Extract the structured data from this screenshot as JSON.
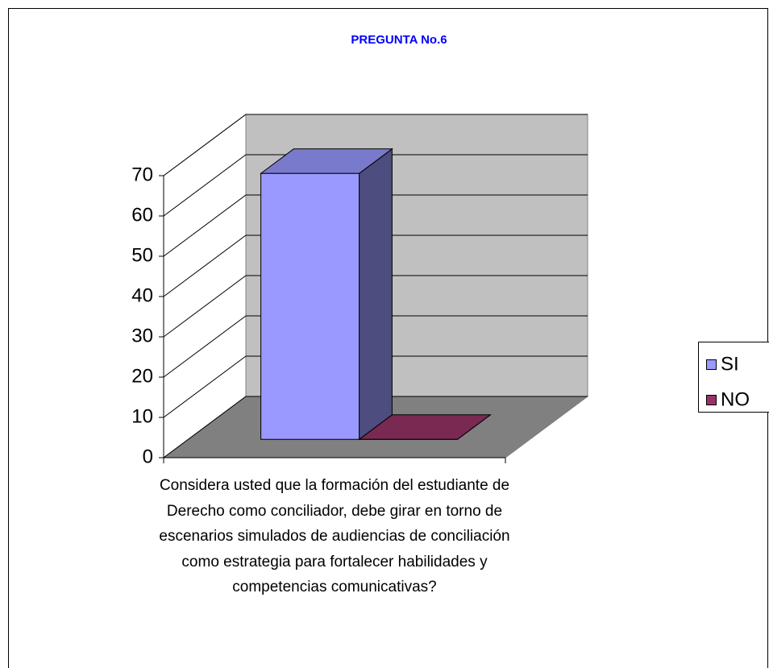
{
  "chart_data": {
    "type": "bar3d",
    "title": "PREGUNTA No.6",
    "categories": [
      "Considera usted que la formación del estudiante de Derecho como conciliador, debe girar en torno de escenarios simulados de audiencias de conciliación como estrategia para fortalecer habilidades y competencias comunicativas?"
    ],
    "series": [
      {
        "name": "SI",
        "color": "#9999ff",
        "values": [
          66
        ]
      },
      {
        "name": "NO",
        "color": "#993366",
        "values": [
          0
        ]
      }
    ],
    "ylim": [
      0,
      70
    ],
    "yticks": [
      0,
      10,
      20,
      30,
      40,
      50,
      60,
      70
    ],
    "grid": true,
    "legend": "right"
  }
}
